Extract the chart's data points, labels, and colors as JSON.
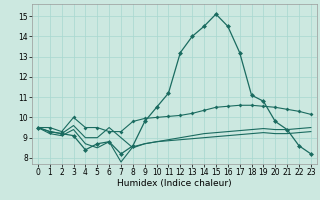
{
  "xlabel": "Humidex (Indice chaleur)",
  "xlim": [
    -0.5,
    23.5
  ],
  "ylim": [
    7.7,
    15.6
  ],
  "yticks": [
    8,
    9,
    10,
    11,
    12,
    13,
    14,
    15
  ],
  "xticks": [
    0,
    1,
    2,
    3,
    4,
    5,
    6,
    7,
    8,
    9,
    10,
    11,
    12,
    13,
    14,
    15,
    16,
    17,
    18,
    19,
    20,
    21,
    22,
    23
  ],
  "background_color": "#cce8e0",
  "grid_color": "#a8d8d0",
  "line_color": "#1a6b60",
  "line1_y": [
    9.5,
    9.3,
    9.2,
    9.1,
    8.4,
    8.7,
    8.8,
    8.2,
    8.6,
    9.8,
    10.5,
    11.2,
    13.2,
    14.0,
    14.5,
    15.1,
    14.5,
    13.2,
    11.1,
    10.8,
    9.8,
    9.4,
    8.6,
    8.2
  ],
  "line2_y": [
    9.5,
    9.5,
    9.3,
    10.0,
    9.5,
    9.5,
    9.3,
    9.3,
    9.8,
    9.95,
    10.0,
    10.05,
    10.1,
    10.2,
    10.35,
    10.5,
    10.55,
    10.6,
    10.6,
    10.55,
    10.5,
    10.4,
    10.3,
    10.15
  ],
  "line3_y": [
    9.5,
    9.3,
    9.2,
    9.6,
    9.0,
    9.0,
    9.5,
    9.0,
    8.5,
    8.7,
    8.8,
    8.9,
    9.0,
    9.1,
    9.2,
    9.25,
    9.3,
    9.35,
    9.4,
    9.45,
    9.4,
    9.4,
    9.45,
    9.5
  ],
  "line4_y": [
    9.5,
    9.2,
    9.1,
    9.4,
    8.7,
    8.5,
    8.8,
    7.8,
    8.55,
    8.7,
    8.8,
    8.85,
    8.9,
    8.95,
    9.0,
    9.05,
    9.1,
    9.15,
    9.2,
    9.25,
    9.2,
    9.2,
    9.25,
    9.3
  ],
  "line1_markers": [
    0,
    1,
    2,
    3,
    4,
    5,
    6,
    7,
    8,
    9,
    10,
    11,
    12,
    13,
    14,
    15,
    16,
    17,
    18,
    19,
    20,
    21,
    22,
    23
  ],
  "line2_markers": [
    0,
    3,
    4,
    5,
    6,
    7,
    8,
    9,
    10,
    14,
    15,
    16,
    17,
    18,
    19,
    20,
    21,
    22,
    23
  ],
  "line3_markers": [],
  "line4_markers": []
}
